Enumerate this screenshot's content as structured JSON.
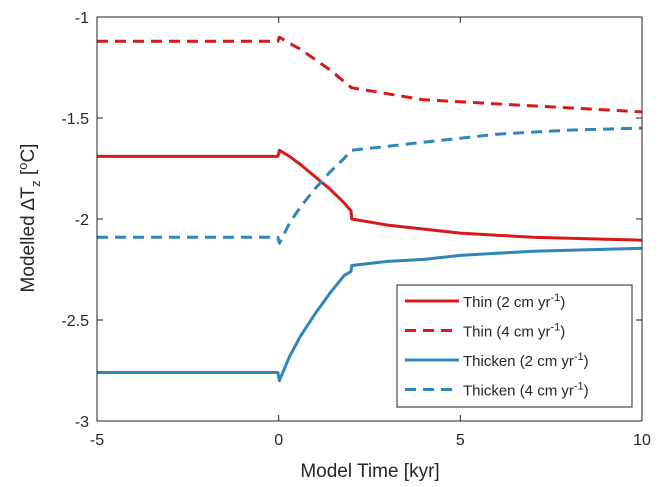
{
  "chart_data": {
    "type": "line",
    "xlabel": "Model Time [kyr]",
    "ylabel": {
      "prefix": "Modelled ",
      "delta": "∆",
      "T": "T",
      "sub": "z",
      "bracket_open": " [",
      "deg": "o",
      "unit": "C]"
    },
    "xlim": [
      -5,
      10
    ],
    "ylim": [
      -3,
      -1
    ],
    "xticks": [
      -5,
      0,
      5,
      10
    ],
    "yticks": [
      -3,
      -2.5,
      -2,
      -1.5,
      -1
    ],
    "xtick_labels": [
      "-5",
      "0",
      "5",
      "10"
    ],
    "ytick_labels": [
      "-3",
      "-2.5",
      "-2",
      "-1.5",
      "-1"
    ],
    "grid": false,
    "legend_placement": "bottom-right",
    "series": [
      {
        "name": "Thin (2 cm yr-1)",
        "legend": {
          "label": "Thin (2 cm yr",
          "sup": "-1",
          "close": ")"
        },
        "color": "#d7191c",
        "dash": "solid",
        "x": [
          -5,
          -0.02,
          0.02,
          0.3,
          0.6,
          1.0,
          1.4,
          1.8,
          1.99,
          2.01,
          3,
          4,
          5,
          6,
          7,
          8,
          9,
          10
        ],
        "y": [
          -1.69,
          -1.69,
          -1.66,
          -1.69,
          -1.73,
          -1.79,
          -1.85,
          -1.92,
          -1.96,
          -2.0,
          -2.03,
          -2.05,
          -2.07,
          -2.08,
          -2.09,
          -2.095,
          -2.1,
          -2.105
        ]
      },
      {
        "name": "Thin (4 cm yr-1)",
        "legend": {
          "label": "Thin (4 cm yr",
          "sup": "-1",
          "close": ")"
        },
        "color": "#d7191c",
        "dash": "dashed",
        "x": [
          -5,
          -0.02,
          0.02,
          0.3,
          0.6,
          1.0,
          1.4,
          1.8,
          2.0,
          3,
          4,
          5,
          6,
          7,
          8,
          9,
          10
        ],
        "y": [
          -1.12,
          -1.12,
          -1.1,
          -1.13,
          -1.16,
          -1.21,
          -1.26,
          -1.32,
          -1.35,
          -1.38,
          -1.41,
          -1.42,
          -1.43,
          -1.44,
          -1.45,
          -1.46,
          -1.47
        ]
      },
      {
        "name": "Thicken (2 cm yr-1)",
        "legend": {
          "label": "Thicken (2 cm yr",
          "sup": "-1",
          "close": ")"
        },
        "color": "#2f86b9",
        "dash": "solid",
        "x": [
          -5,
          -0.02,
          0.02,
          0.3,
          0.6,
          1.0,
          1.4,
          1.8,
          1.99,
          2.01,
          3,
          4,
          5,
          6,
          7,
          8,
          9,
          10
        ],
        "y": [
          -2.76,
          -2.76,
          -2.8,
          -2.68,
          -2.58,
          -2.47,
          -2.37,
          -2.28,
          -2.26,
          -2.23,
          -2.21,
          -2.2,
          -2.18,
          -2.17,
          -2.16,
          -2.155,
          -2.15,
          -2.145
        ]
      },
      {
        "name": "Thicken (4 cm yr-1)",
        "legend": {
          "label": "Thicken (4 cm yr",
          "sup": "-1",
          "close": ")"
        },
        "color": "#2f86b9",
        "dash": "dashed",
        "x": [
          -5,
          -0.02,
          0.02,
          0.3,
          0.6,
          1.0,
          1.4,
          1.8,
          2.0,
          3,
          4,
          5,
          6,
          7,
          8,
          9,
          10
        ],
        "y": [
          -2.09,
          -2.09,
          -2.12,
          -2.02,
          -1.94,
          -1.85,
          -1.77,
          -1.7,
          -1.66,
          -1.64,
          -1.62,
          -1.6,
          -1.58,
          -1.57,
          -1.56,
          -1.555,
          -1.55
        ]
      }
    ]
  }
}
